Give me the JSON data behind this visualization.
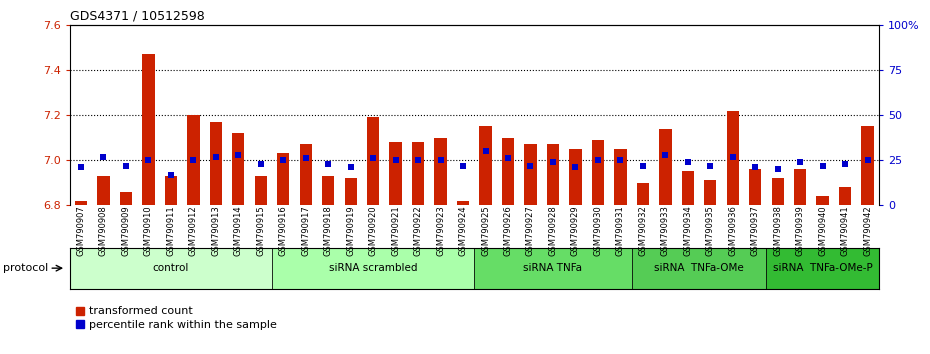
{
  "title": "GDS4371 / 10512598",
  "categories": [
    "GSM790907",
    "GSM790908",
    "GSM790909",
    "GSM790910",
    "GSM790911",
    "GSM790912",
    "GSM790913",
    "GSM790914",
    "GSM790915",
    "GSM790916",
    "GSM790917",
    "GSM790918",
    "GSM790919",
    "GSM790920",
    "GSM790921",
    "GSM790922",
    "GSM790923",
    "GSM790924",
    "GSM790925",
    "GSM790926",
    "GSM790927",
    "GSM790928",
    "GSM790929",
    "GSM790930",
    "GSM790931",
    "GSM790932",
    "GSM790933",
    "GSM790934",
    "GSM790935",
    "GSM790936",
    "GSM790937",
    "GSM790938",
    "GSM790939",
    "GSM790940",
    "GSM790941",
    "GSM790942"
  ],
  "bar_values": [
    6.82,
    6.93,
    6.86,
    7.47,
    6.93,
    7.2,
    7.17,
    7.12,
    6.93,
    7.03,
    7.07,
    6.93,
    6.92,
    7.19,
    7.08,
    7.08,
    7.1,
    6.82,
    7.15,
    7.1,
    7.07,
    7.07,
    7.05,
    7.09,
    7.05,
    6.9,
    7.14,
    6.95,
    6.91,
    7.22,
    6.96,
    6.92,
    6.96,
    6.84,
    6.88,
    7.15
  ],
  "percentile_values": [
    21,
    27,
    22,
    25,
    17,
    25,
    27,
    28,
    23,
    25,
    26,
    23,
    21,
    26,
    25,
    25,
    25,
    22,
    30,
    26,
    22,
    24,
    21,
    25,
    25,
    22,
    28,
    24,
    22,
    27,
    21,
    20,
    24,
    22,
    23,
    25
  ],
  "groups": [
    {
      "label": "control",
      "start": 0,
      "end": 9,
      "color": "#ccffcc"
    },
    {
      "label": "siRNA scrambled",
      "start": 9,
      "end": 18,
      "color": "#aaffaa"
    },
    {
      "label": "siRNA TNFa",
      "start": 18,
      "end": 25,
      "color": "#66dd66"
    },
    {
      "label": "siRNA  TNFa-OMe",
      "start": 25,
      "end": 31,
      "color": "#55cc55"
    },
    {
      "label": "siRNA  TNFa-OMe-P",
      "start": 31,
      "end": 36,
      "color": "#33bb33"
    }
  ],
  "ymin": 6.8,
  "ymax": 7.6,
  "yticks": [
    6.8,
    7.0,
    7.2,
    7.4,
    7.6
  ],
  "right_yticks": [
    0,
    25,
    50,
    75,
    100
  ],
  "bar_color": "#cc2200",
  "percentile_color": "#0000cc",
  "bg_color": "#ffffff"
}
